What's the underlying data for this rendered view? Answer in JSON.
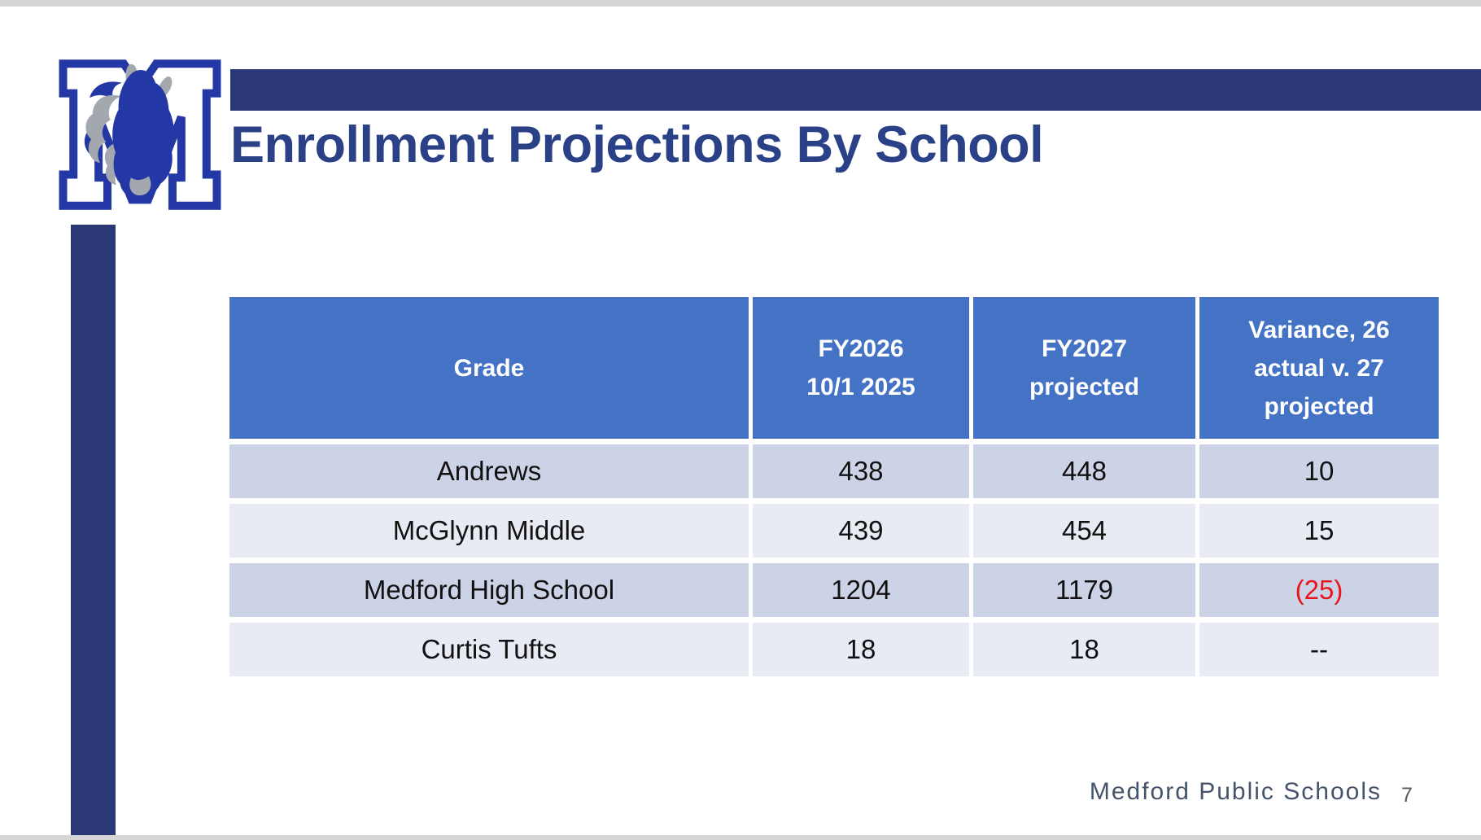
{
  "slide": {
    "title": "Enrollment Projections By School",
    "footer": "Medford Public Schools",
    "page_number": "7"
  },
  "logo": {
    "letter": "M",
    "description": "Medford Mustangs block-M logo with mustang head"
  },
  "table": {
    "headers": [
      "Grade",
      "FY2026\n10/1 2025",
      "FY2027\nprojected",
      "Variance, 26\nactual v. 27\nprojected"
    ],
    "rows": [
      {
        "grade": "Andrews",
        "fy2026": "438",
        "fy2027": "448",
        "variance": "10",
        "variance_negative": false
      },
      {
        "grade": "McGlynn Middle",
        "fy2026": "439",
        "fy2027": "454",
        "variance": "15",
        "variance_negative": false
      },
      {
        "grade": "Medford High School",
        "fy2026": "1204",
        "fy2027": "1179",
        "variance": "(25)",
        "variance_negative": true
      },
      {
        "grade": "Curtis Tufts",
        "fy2026": "18",
        "fy2027": "18",
        "variance": "--",
        "variance_negative": false
      }
    ]
  },
  "colors": {
    "accent_bar": "#2b3876",
    "title_text": "#2b4187",
    "table_header_bg": "#4472c4",
    "band_dark": "#cdd3e7",
    "band_light": "#e9ebf4",
    "negative_value": "#e8151b",
    "footer_text": "#44546a",
    "logo_blue": "#2337a5",
    "logo_gray": "#a3a7ae"
  }
}
